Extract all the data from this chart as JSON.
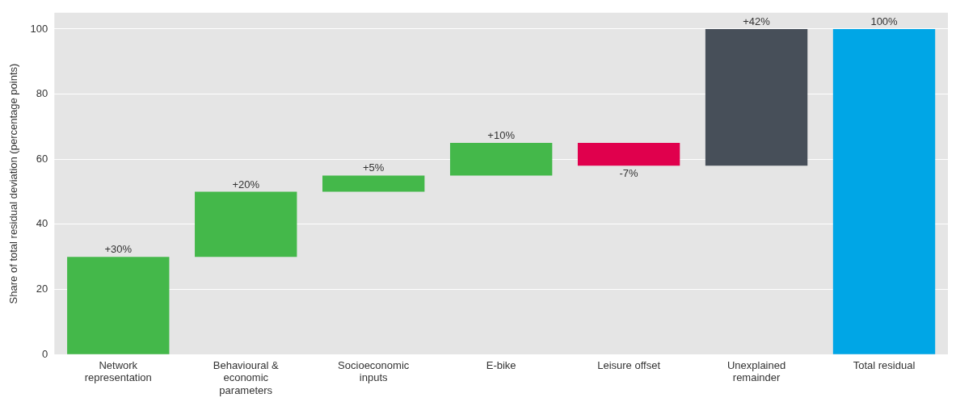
{
  "chart_data": {
    "type": "bar",
    "ylabel": "Share of total residual deviation (percentage points)",
    "categories": [
      "Network representation",
      "Behavioural & economic parameters",
      "Socioeconomic inputs",
      "E-bike",
      "Leisure offset",
      "Unexplained remainder",
      "Total residual"
    ],
    "values": [
      30,
      20,
      5,
      10,
      -7,
      42,
      100
    ],
    "base": [
      0,
      30,
      50,
      55,
      65,
      58,
      0
    ],
    "colors": [
      "#44b84a",
      "#44b84a",
      "#44b84a",
      "#44b84a",
      "#e0004d",
      "#474f59",
      "#00a6e6"
    ],
    "value_labels": [
      "+30%",
      "+20%",
      "+5%",
      "+10%",
      "-7%",
      "+42%",
      "100%"
    ],
    "ylim": [
      0,
      105
    ],
    "yticks": [
      0,
      20,
      40,
      60,
      80,
      100
    ],
    "grid": "y",
    "legend": false
  }
}
